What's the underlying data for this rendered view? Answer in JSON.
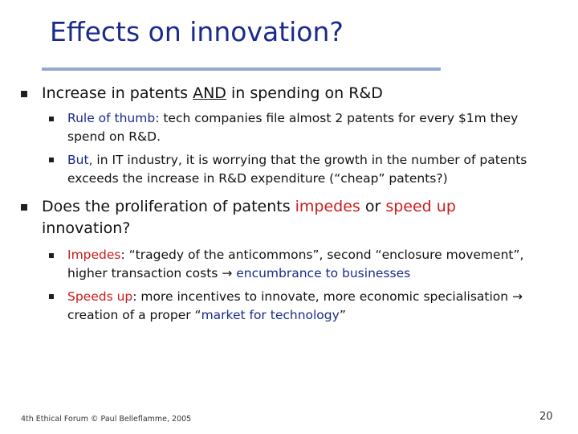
{
  "slide": {
    "title": "Effects on innovation?",
    "bullets": [
      {
        "parts": [
          "Increase in patents ",
          "AND",
          " in spending on R&D"
        ],
        "sub": [
          {
            "lines": [
              [
                "Rule of thumb",
                ": tech companies file almost 2 patents for every $1m they"
              ],
              [
                "spend on R&D."
              ]
            ]
          },
          {
            "lines": [
              [
                "But,",
                " in IT industry, it is worrying that the growth in the number of patents"
              ],
              [
                "exceeds the increase in R&D expenditure (“cheap” patents?)"
              ]
            ]
          }
        ]
      },
      {
        "line1": [
          "Does the proliferation of patents ",
          "impedes",
          " or ",
          "speed up"
        ],
        "line2": "innovation?",
        "sub": [
          {
            "lines": [
              [
                "Impedes",
                ": “tragedy of the anticommons”, second “enclosure movement”,"
              ],
              [
                "higher transaction costs ",
                "→",
                " encumbrance to businesses"
              ]
            ]
          },
          {
            "lines": [
              [
                "Speeds up",
                ": more incentives to innovate, more economic specialisation ",
                "→"
              ],
              [
                "creation of a proper “",
                "market for technology",
                "”"
              ]
            ]
          }
        ]
      }
    ],
    "footer": "4th Ethical Forum © Paul Belleflamme, 2005",
    "page_number": "20",
    "colors": {
      "title": "#1a2a8c",
      "accent_red": "#cc1b1b",
      "accent_blue": "#1a2a8c",
      "rule": "#93a9cf"
    }
  }
}
